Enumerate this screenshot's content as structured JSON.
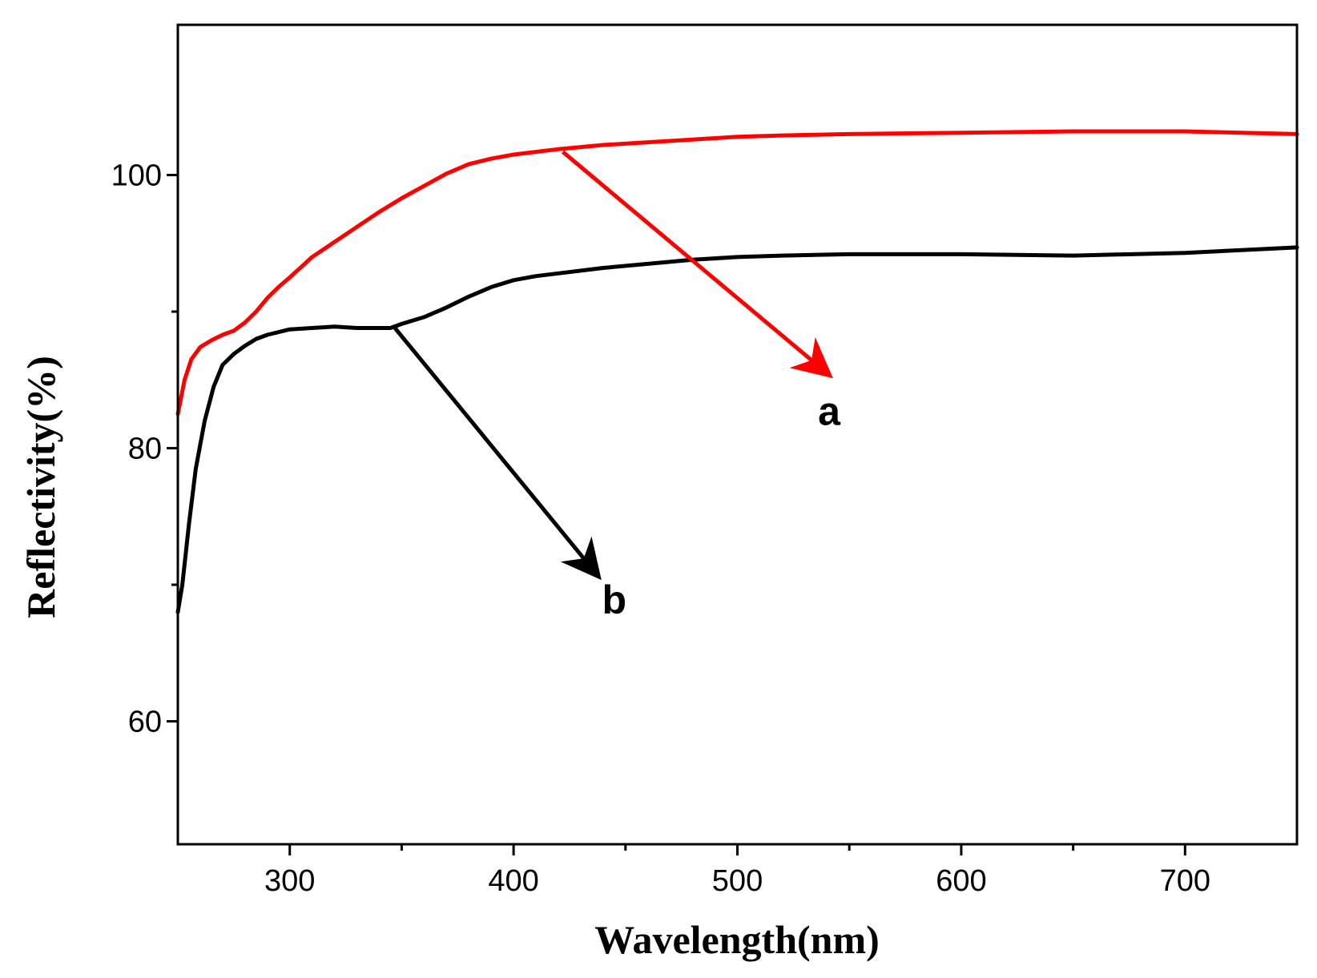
{
  "chart_data": {
    "type": "line",
    "title": "",
    "xlabel": "Wavelength(nm)",
    "ylabel": "Reflectivity(%)",
    "xlim": [
      250,
      750
    ],
    "ylim": [
      51,
      111
    ],
    "x_ticks": [
      300,
      400,
      500,
      600,
      700
    ],
    "x_tick_labels": [
      "300",
      "400",
      "500",
      "600",
      "700"
    ],
    "x_minor_ticks": [
      350,
      450,
      550,
      650
    ],
    "y_ticks": [
      60,
      80,
      100
    ],
    "y_tick_labels": [
      "60",
      "80",
      "100"
    ],
    "y_minor_ticks": [
      70,
      90
    ],
    "grid": false,
    "series": [
      {
        "name": "a",
        "color": "#ff0000",
        "x": [
          250,
          253,
          256,
          260,
          265,
          270,
          275,
          280,
          285,
          290,
          295,
          300,
          310,
          320,
          330,
          340,
          350,
          360,
          370,
          380,
          390,
          400,
          410,
          420,
          440,
          460,
          480,
          500,
          520,
          550,
          600,
          650,
          700,
          750
        ],
        "y": [
          82.5,
          85.0,
          86.5,
          87.4,
          87.9,
          88.3,
          88.6,
          89.2,
          90.0,
          91.0,
          91.8,
          92.5,
          94.0,
          95.1,
          96.2,
          97.3,
          98.3,
          99.2,
          100.1,
          100.8,
          101.2,
          101.5,
          101.7,
          101.9,
          102.2,
          102.4,
          102.6,
          102.8,
          102.9,
          103.0,
          103.1,
          103.2,
          103.2,
          103.0
        ]
      },
      {
        "name": "b",
        "color": "#000000",
        "x": [
          250,
          252,
          255,
          258,
          262,
          266,
          270,
          275,
          280,
          285,
          290,
          300,
          310,
          320,
          330,
          340,
          345,
          350,
          360,
          370,
          380,
          390,
          400,
          410,
          420,
          440,
          460,
          480,
          500,
          520,
          550,
          600,
          650,
          700,
          750
        ],
        "y": [
          68.0,
          70.0,
          74.5,
          78.5,
          82.0,
          84.5,
          86.1,
          86.9,
          87.5,
          88.0,
          88.3,
          88.7,
          88.8,
          88.9,
          88.8,
          88.8,
          88.8,
          89.1,
          89.6,
          90.3,
          91.1,
          91.8,
          92.3,
          92.6,
          92.8,
          93.2,
          93.5,
          93.8,
          94.0,
          94.1,
          94.2,
          94.2,
          94.1,
          94.3,
          94.7
        ]
      }
    ],
    "annotations": [
      {
        "label": "a",
        "color": "#ff0000",
        "arrow_from": [
          422,
          101.7
        ],
        "arrow_to": [
          540,
          85.5
        ],
        "text_at": [
          541,
          81.7
        ]
      },
      {
        "label": "b",
        "color": "#000000",
        "arrow_from": [
          347,
          88.8
        ],
        "arrow_to": [
          437,
          70.8
        ],
        "text_at": [
          445,
          67.9
        ]
      }
    ]
  }
}
